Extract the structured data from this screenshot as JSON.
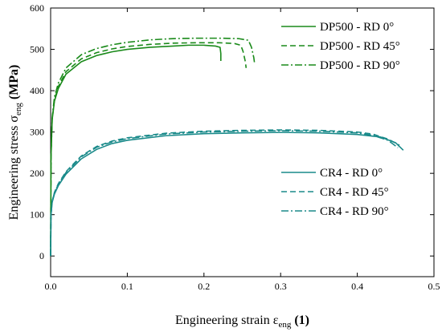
{
  "chart_data": {
    "type": "line",
    "xlabel": "Engineering strain ε",
    "xlabel_sub": "eng",
    "xlabel_unit": " (1)",
    "ylabel": "Engineering stress σ",
    "ylabel_sub": "eng",
    "ylabel_unit": " (MPa)",
    "xlim": [
      0,
      0.5
    ],
    "ylim": [
      -50,
      600
    ],
    "xticks": [
      0.0,
      0.1,
      0.2,
      0.3,
      0.4,
      0.5
    ],
    "xtick_labels": [
      "0.0",
      "0.1",
      "0.2",
      "0.3",
      "0.4",
      "0.5"
    ],
    "yticks": [
      0,
      100,
      200,
      300,
      400,
      500,
      600
    ],
    "ytick_labels": [
      "0",
      "100",
      "200",
      "300",
      "400",
      "500",
      "600"
    ],
    "grid": false,
    "legend_groups": [
      {
        "placement": "top-right",
        "series": [
          "DP500 - RD 0°",
          "DP500 - RD 45°",
          "DP500 - RD 90°"
        ]
      },
      {
        "placement": "middle-right",
        "series": [
          "CR4 - RD 0°",
          "CR4 - RD 45°",
          "CR4 - RD 90°"
        ]
      }
    ],
    "series": [
      {
        "name": "DP500 - RD 0°",
        "color": "#1a8a1a",
        "dash": "solid",
        "points": [
          [
            0,
            0
          ],
          [
            0.0005,
            240
          ],
          [
            0.002,
            330
          ],
          [
            0.005,
            375
          ],
          [
            0.01,
            405
          ],
          [
            0.02,
            440
          ],
          [
            0.04,
            470
          ],
          [
            0.06,
            485
          ],
          [
            0.08,
            494
          ],
          [
            0.1,
            500
          ],
          [
            0.13,
            505
          ],
          [
            0.16,
            508
          ],
          [
            0.18,
            510
          ],
          [
            0.2,
            510
          ],
          [
            0.215,
            508
          ],
          [
            0.221,
            505
          ],
          [
            0.222,
            490
          ],
          [
            0.222,
            472
          ]
        ]
      },
      {
        "name": "DP500 - RD 45°",
        "color": "#1a8a1a",
        "dash": "dashed",
        "points": [
          [
            0,
            0
          ],
          [
            0.0005,
            240
          ],
          [
            0.002,
            330
          ],
          [
            0.005,
            378
          ],
          [
            0.01,
            410
          ],
          [
            0.02,
            446
          ],
          [
            0.04,
            477
          ],
          [
            0.06,
            492
          ],
          [
            0.08,
            501
          ],
          [
            0.1,
            507
          ],
          [
            0.13,
            512
          ],
          [
            0.16,
            515
          ],
          [
            0.19,
            516
          ],
          [
            0.22,
            516
          ],
          [
            0.24,
            514
          ],
          [
            0.248,
            510
          ],
          [
            0.251,
            495
          ],
          [
            0.254,
            470
          ],
          [
            0.255,
            455
          ]
        ]
      },
      {
        "name": "DP500 - RD 90°",
        "color": "#1a8a1a",
        "dash": "dashdot",
        "points": [
          [
            0,
            0
          ],
          [
            0.0005,
            240
          ],
          [
            0.002,
            335
          ],
          [
            0.005,
            385
          ],
          [
            0.01,
            418
          ],
          [
            0.02,
            455
          ],
          [
            0.04,
            487
          ],
          [
            0.06,
            502
          ],
          [
            0.08,
            511
          ],
          [
            0.1,
            517
          ],
          [
            0.13,
            523
          ],
          [
            0.16,
            526
          ],
          [
            0.19,
            527
          ],
          [
            0.22,
            527
          ],
          [
            0.245,
            526
          ],
          [
            0.258,
            522
          ],
          [
            0.262,
            505
          ],
          [
            0.265,
            480
          ],
          [
            0.266,
            466
          ]
        ]
      },
      {
        "name": "CR4 - RD 0°",
        "color": "#1a8a8a",
        "dash": "solid",
        "points": [
          [
            0,
            0
          ],
          [
            0.0005,
            100
          ],
          [
            0.002,
            130
          ],
          [
            0.005,
            150
          ],
          [
            0.01,
            170
          ],
          [
            0.02,
            198
          ],
          [
            0.04,
            235
          ],
          [
            0.06,
            258
          ],
          [
            0.08,
            272
          ],
          [
            0.1,
            280
          ],
          [
            0.15,
            291
          ],
          [
            0.2,
            296
          ],
          [
            0.25,
            298
          ],
          [
            0.3,
            299
          ],
          [
            0.35,
            298
          ],
          [
            0.4,
            294
          ],
          [
            0.43,
            288
          ],
          [
            0.45,
            274
          ],
          [
            0.46,
            256
          ]
        ]
      },
      {
        "name": "CR4 - RD 45°",
        "color": "#1a8a8a",
        "dash": "dashed",
        "points": [
          [
            0,
            0
          ],
          [
            0.0005,
            100
          ],
          [
            0.002,
            132
          ],
          [
            0.005,
            154
          ],
          [
            0.01,
            175
          ],
          [
            0.02,
            204
          ],
          [
            0.04,
            242
          ],
          [
            0.06,
            265
          ],
          [
            0.08,
            278
          ],
          [
            0.1,
            286
          ],
          [
            0.15,
            297
          ],
          [
            0.2,
            302
          ],
          [
            0.25,
            304
          ],
          [
            0.3,
            305
          ],
          [
            0.35,
            304
          ],
          [
            0.4,
            300
          ],
          [
            0.42,
            295
          ],
          [
            0.44,
            283
          ],
          [
            0.455,
            268
          ]
        ]
      },
      {
        "name": "CR4 - RD 90°",
        "color": "#1a8a8a",
        "dash": "dashdot",
        "points": [
          [
            0,
            0
          ],
          [
            0.0005,
            100
          ],
          [
            0.002,
            132
          ],
          [
            0.005,
            153
          ],
          [
            0.01,
            173
          ],
          [
            0.02,
            202
          ],
          [
            0.04,
            240
          ],
          [
            0.06,
            263
          ],
          [
            0.08,
            276
          ],
          [
            0.1,
            284
          ],
          [
            0.15,
            295
          ],
          [
            0.2,
            300
          ],
          [
            0.25,
            302
          ],
          [
            0.3,
            303
          ],
          [
            0.35,
            302
          ],
          [
            0.4,
            298
          ],
          [
            0.42,
            292
          ],
          [
            0.44,
            280
          ],
          [
            0.453,
            262
          ]
        ]
      }
    ]
  }
}
